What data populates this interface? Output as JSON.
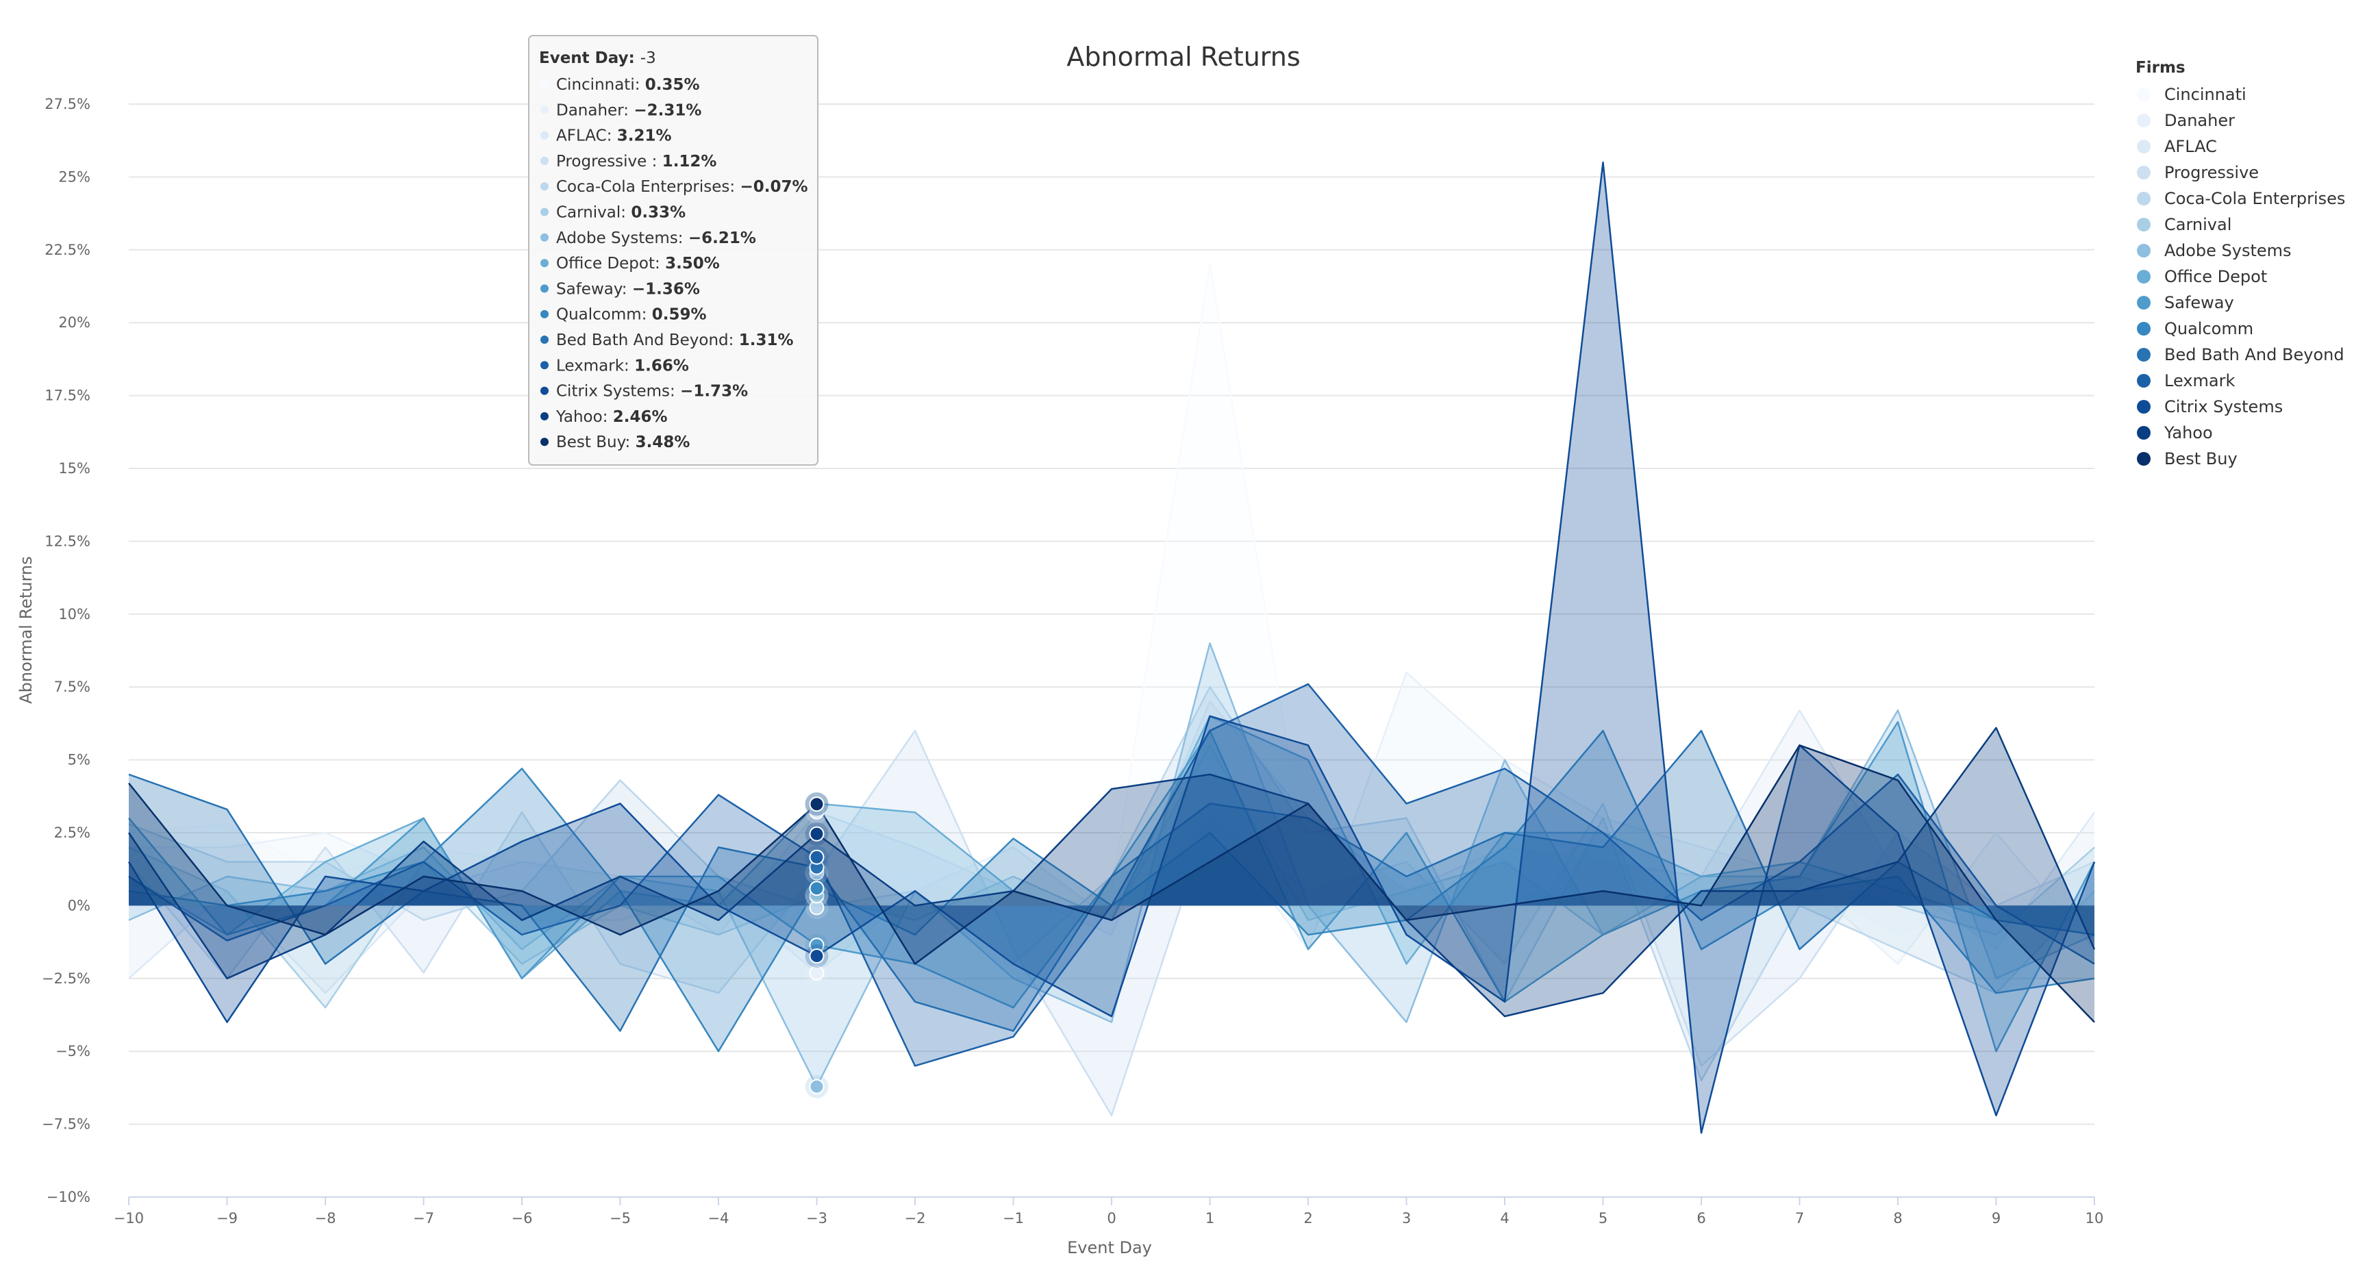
{
  "chart_data": {
    "type": "area",
    "title": "Abnormal Returns",
    "xlabel": "Event Day",
    "ylabel": "Abnormal Returns",
    "x": [
      -10,
      -9,
      -8,
      -7,
      -6,
      -5,
      -4,
      -3,
      -2,
      -1,
      0,
      1,
      2,
      3,
      4,
      5,
      6,
      7,
      8,
      9,
      10
    ],
    "ylim": [
      -10,
      27.5
    ],
    "ytick_step": 2.5,
    "grid": true,
    "legend_title": "Firms",
    "legend_position": "right",
    "series": [
      {
        "name": "Cincinnati",
        "color": "#f7fbff",
        "values": [
          2.5,
          2.8,
          1.0,
          2.0,
          1.5,
          0.5,
          -0.5,
          0.35,
          1.0,
          -0.5,
          0.5,
          22.0,
          1.0,
          -0.5,
          0.0,
          1.5,
          0.5,
          1.0,
          -1.0,
          0.5,
          -0.5
        ]
      },
      {
        "name": "Danaher",
        "color": "#e8f1fa",
        "values": [
          2.0,
          2.0,
          2.5,
          1.0,
          -0.5,
          -0.5,
          0.5,
          -2.31,
          0.5,
          2.0,
          -0.5,
          3.0,
          -1.5,
          8.0,
          5.0,
          3.0,
          2.0,
          1.0,
          -2.0,
          2.5,
          -1.5
        ]
      },
      {
        "name": "AFLAC",
        "color": "#dce9f6",
        "values": [
          -2.5,
          0.5,
          -3.0,
          0.5,
          1.5,
          1.0,
          -1.0,
          3.21,
          2.0,
          0.5,
          -1.0,
          7.0,
          3.0,
          0.5,
          2.0,
          1.5,
          1.0,
          6.7,
          1.0,
          -1.5,
          3.2
        ]
      },
      {
        "name": "Progressive",
        "color": "#cddff1",
        "values": [
          1.5,
          -2.5,
          2.0,
          -2.3,
          3.2,
          -2.0,
          -3.0,
          1.12,
          6.0,
          -1.5,
          -7.2,
          3.0,
          0.5,
          1.5,
          -2.0,
          3.5,
          -5.5,
          -2.5,
          2.5,
          0.0,
          1.5
        ]
      },
      {
        "name": "Coca-Cola Enterprises",
        "color": "#bdd7ec",
        "values": [
          2.8,
          1.5,
          1.5,
          -0.5,
          0.5,
          4.3,
          1.0,
          -0.07,
          0.5,
          -2.0,
          1.0,
          7.5,
          2.5,
          3.0,
          -3.3,
          3.0,
          -6.0,
          0.0,
          -1.5,
          -3.0,
          0.5
        ]
      },
      {
        "name": "Carnival",
        "color": "#a9cfe5",
        "values": [
          2.0,
          0.5,
          -3.5,
          1.5,
          -2.0,
          0.0,
          -1.0,
          0.33,
          -0.5,
          1.0,
          -0.5,
          5.5,
          -0.5,
          0.5,
          1.5,
          -1.0,
          0.5,
          1.0,
          0.0,
          -1.0,
          2.0
        ]
      },
      {
        "name": "Adobe Systems",
        "color": "#8ebfe0",
        "values": [
          -0.5,
          1.0,
          0.5,
          2.0,
          -1.5,
          1.0,
          0.5,
          -6.21,
          0.5,
          -2.5,
          -4.0,
          9.0,
          0.0,
          -4.0,
          5.0,
          -1.0,
          1.0,
          1.0,
          6.7,
          -2.5,
          -1.0
        ]
      },
      {
        "name": "Office Depot",
        "color": "#6aaed6",
        "values": [
          1.0,
          -1.0,
          1.5,
          3.0,
          -2.5,
          0.5,
          0.0,
          3.5,
          3.2,
          0.5,
          -0.5,
          6.5,
          5.0,
          -2.0,
          2.5,
          2.5,
          1.0,
          1.5,
          0.5,
          -0.5,
          -1.0
        ]
      },
      {
        "name": "Safeway",
        "color": "#4f9bcb",
        "values": [
          3.0,
          -1.0,
          0.0,
          3.0,
          -2.5,
          1.0,
          1.0,
          -1.36,
          -2.0,
          -3.5,
          1.0,
          6.0,
          -1.5,
          2.5,
          -3.3,
          -1.0,
          0.5,
          1.0,
          6.3,
          -5.0,
          1.5
        ]
      },
      {
        "name": "Qualcomm",
        "color": "#3787c0",
        "values": [
          0.5,
          0.0,
          0.5,
          1.5,
          4.7,
          0.5,
          -5.0,
          0.59,
          -1.0,
          2.3,
          0.0,
          2.5,
          -1.0,
          -0.5,
          2.0,
          6.0,
          -1.5,
          0.5,
          1.0,
          -3.0,
          -2.5
        ]
      },
      {
        "name": "Bed Bath And Beyond",
        "color": "#2873b3",
        "values": [
          4.5,
          3.3,
          -2.0,
          0.5,
          0.0,
          -4.3,
          2.0,
          1.31,
          -3.3,
          -4.3,
          1.0,
          3.5,
          3.0,
          1.0,
          2.5,
          2.0,
          6.0,
          -1.5,
          1.5,
          -0.5,
          -1.0
        ]
      },
      {
        "name": "Lexmark",
        "color": "#1c60a8",
        "values": [
          1.0,
          -1.2,
          0.0,
          1.5,
          -1.0,
          0.0,
          3.8,
          1.66,
          -5.5,
          -4.5,
          0.0,
          6.0,
          7.6,
          3.5,
          4.7,
          2.5,
          -0.5,
          1.5,
          4.5,
          0.0,
          -2.0
        ]
      },
      {
        "name": "Citrix Systems",
        "color": "#0f4c97",
        "values": [
          1.5,
          -4.0,
          1.0,
          0.5,
          2.2,
          3.5,
          0.0,
          -1.73,
          0.5,
          -2.0,
          -3.8,
          6.5,
          5.5,
          -1.0,
          -3.3,
          25.5,
          -7.8,
          5.5,
          2.5,
          -7.2,
          1.5
        ]
      },
      {
        "name": "Yahoo",
        "color": "#0a3e82",
        "values": [
          2.5,
          -2.5,
          -1.0,
          2.2,
          -0.5,
          1.0,
          -0.5,
          2.46,
          0.0,
          0.5,
          4.0,
          4.5,
          3.5,
          -0.5,
          -3.8,
          -3.0,
          0.5,
          0.5,
          1.5,
          6.1,
          -1.5
        ]
      },
      {
        "name": "Best Buy",
        "color": "#08306b",
        "values": [
          4.2,
          0.0,
          -1.0,
          1.0,
          0.5,
          -1.0,
          0.5,
          3.48,
          -2.0,
          0.5,
          -0.5,
          1.5,
          3.5,
          -0.5,
          0.0,
          0.5,
          0.0,
          5.5,
          4.3,
          -0.5,
          -4.0
        ]
      }
    ],
    "tooltip": {
      "header_label": "Event Day",
      "header_value": "-3",
      "rows": [
        {
          "label": "Cincinnati",
          "value": "0.35%"
        },
        {
          "label": "Danaher",
          "value": "-2.31%"
        },
        {
          "label": "AFLAC",
          "value": "3.21%"
        },
        {
          "label": "Progressive ",
          "value": "1.12%"
        },
        {
          "label": "Coca-Cola Enterprises",
          "value": "-0.07%"
        },
        {
          "label": "Carnival",
          "value": "0.33%"
        },
        {
          "label": "Adobe Systems",
          "value": "-6.21%"
        },
        {
          "label": "Office Depot",
          "value": "3.50%"
        },
        {
          "label": "Safeway",
          "value": "-1.36%"
        },
        {
          "label": "Qualcomm",
          "value": "0.59%"
        },
        {
          "label": "Bed Bath And Beyond",
          "value": "1.31%"
        },
        {
          "label": "Lexmark",
          "value": "1.66%"
        },
        {
          "label": "Citrix Systems",
          "value": "-1.73%"
        },
        {
          "label": "Yahoo",
          "value": "2.46%"
        },
        {
          "label": "Best Buy",
          "value": "3.48%"
        }
      ]
    }
  }
}
